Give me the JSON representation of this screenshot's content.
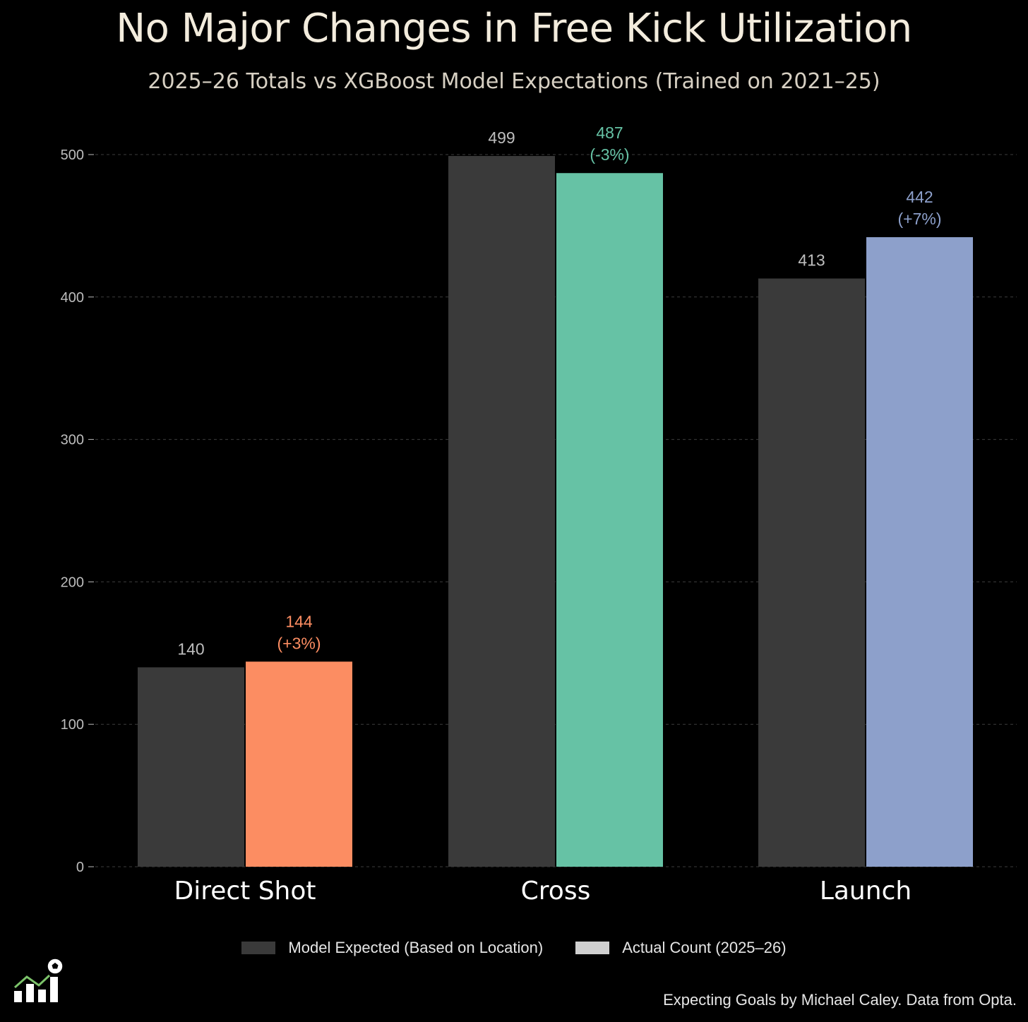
{
  "chart_data": {
    "type": "bar",
    "title": "No Major Changes in Free Kick Utilization",
    "subtitle": "2025–26 Totals vs XGBoost Model Expectations (Trained on 2021–25)",
    "categories": [
      "Direct Shot",
      "Cross",
      "Launch"
    ],
    "series": [
      {
        "name": "Model Expected (Based on Location)",
        "values": [
          140,
          499,
          413
        ],
        "labels": [
          "140",
          "499",
          "413"
        ],
        "color": "#3a3a3a"
      },
      {
        "name": "Actual Count (2025–26)",
        "values": [
          144,
          487,
          442
        ],
        "labels": [
          "144",
          "487",
          "442"
        ],
        "pct_labels": [
          "(+3%)",
          "(-3%)",
          "(+7%)"
        ],
        "colors": [
          "#fc8d62",
          "#66c2a5",
          "#8da0cb"
        ],
        "legend_color": "#d0d0d0"
      }
    ],
    "ylim": [
      0,
      500
    ],
    "yticks": [
      0,
      100,
      200,
      300,
      400,
      500
    ],
    "grid": true,
    "legend_position": "bottom"
  },
  "colors": {
    "background": "#000000",
    "grid": "#3d3d3d",
    "tick_text": "#bdbdbd",
    "expected_label": "#bdbdbd",
    "category_text": "#ffffff"
  },
  "footer": {
    "credit": "Expecting Goals by Michael Caley. Data from Opta.",
    "logo_icon": "chart-with-soccer-ball-logo"
  }
}
